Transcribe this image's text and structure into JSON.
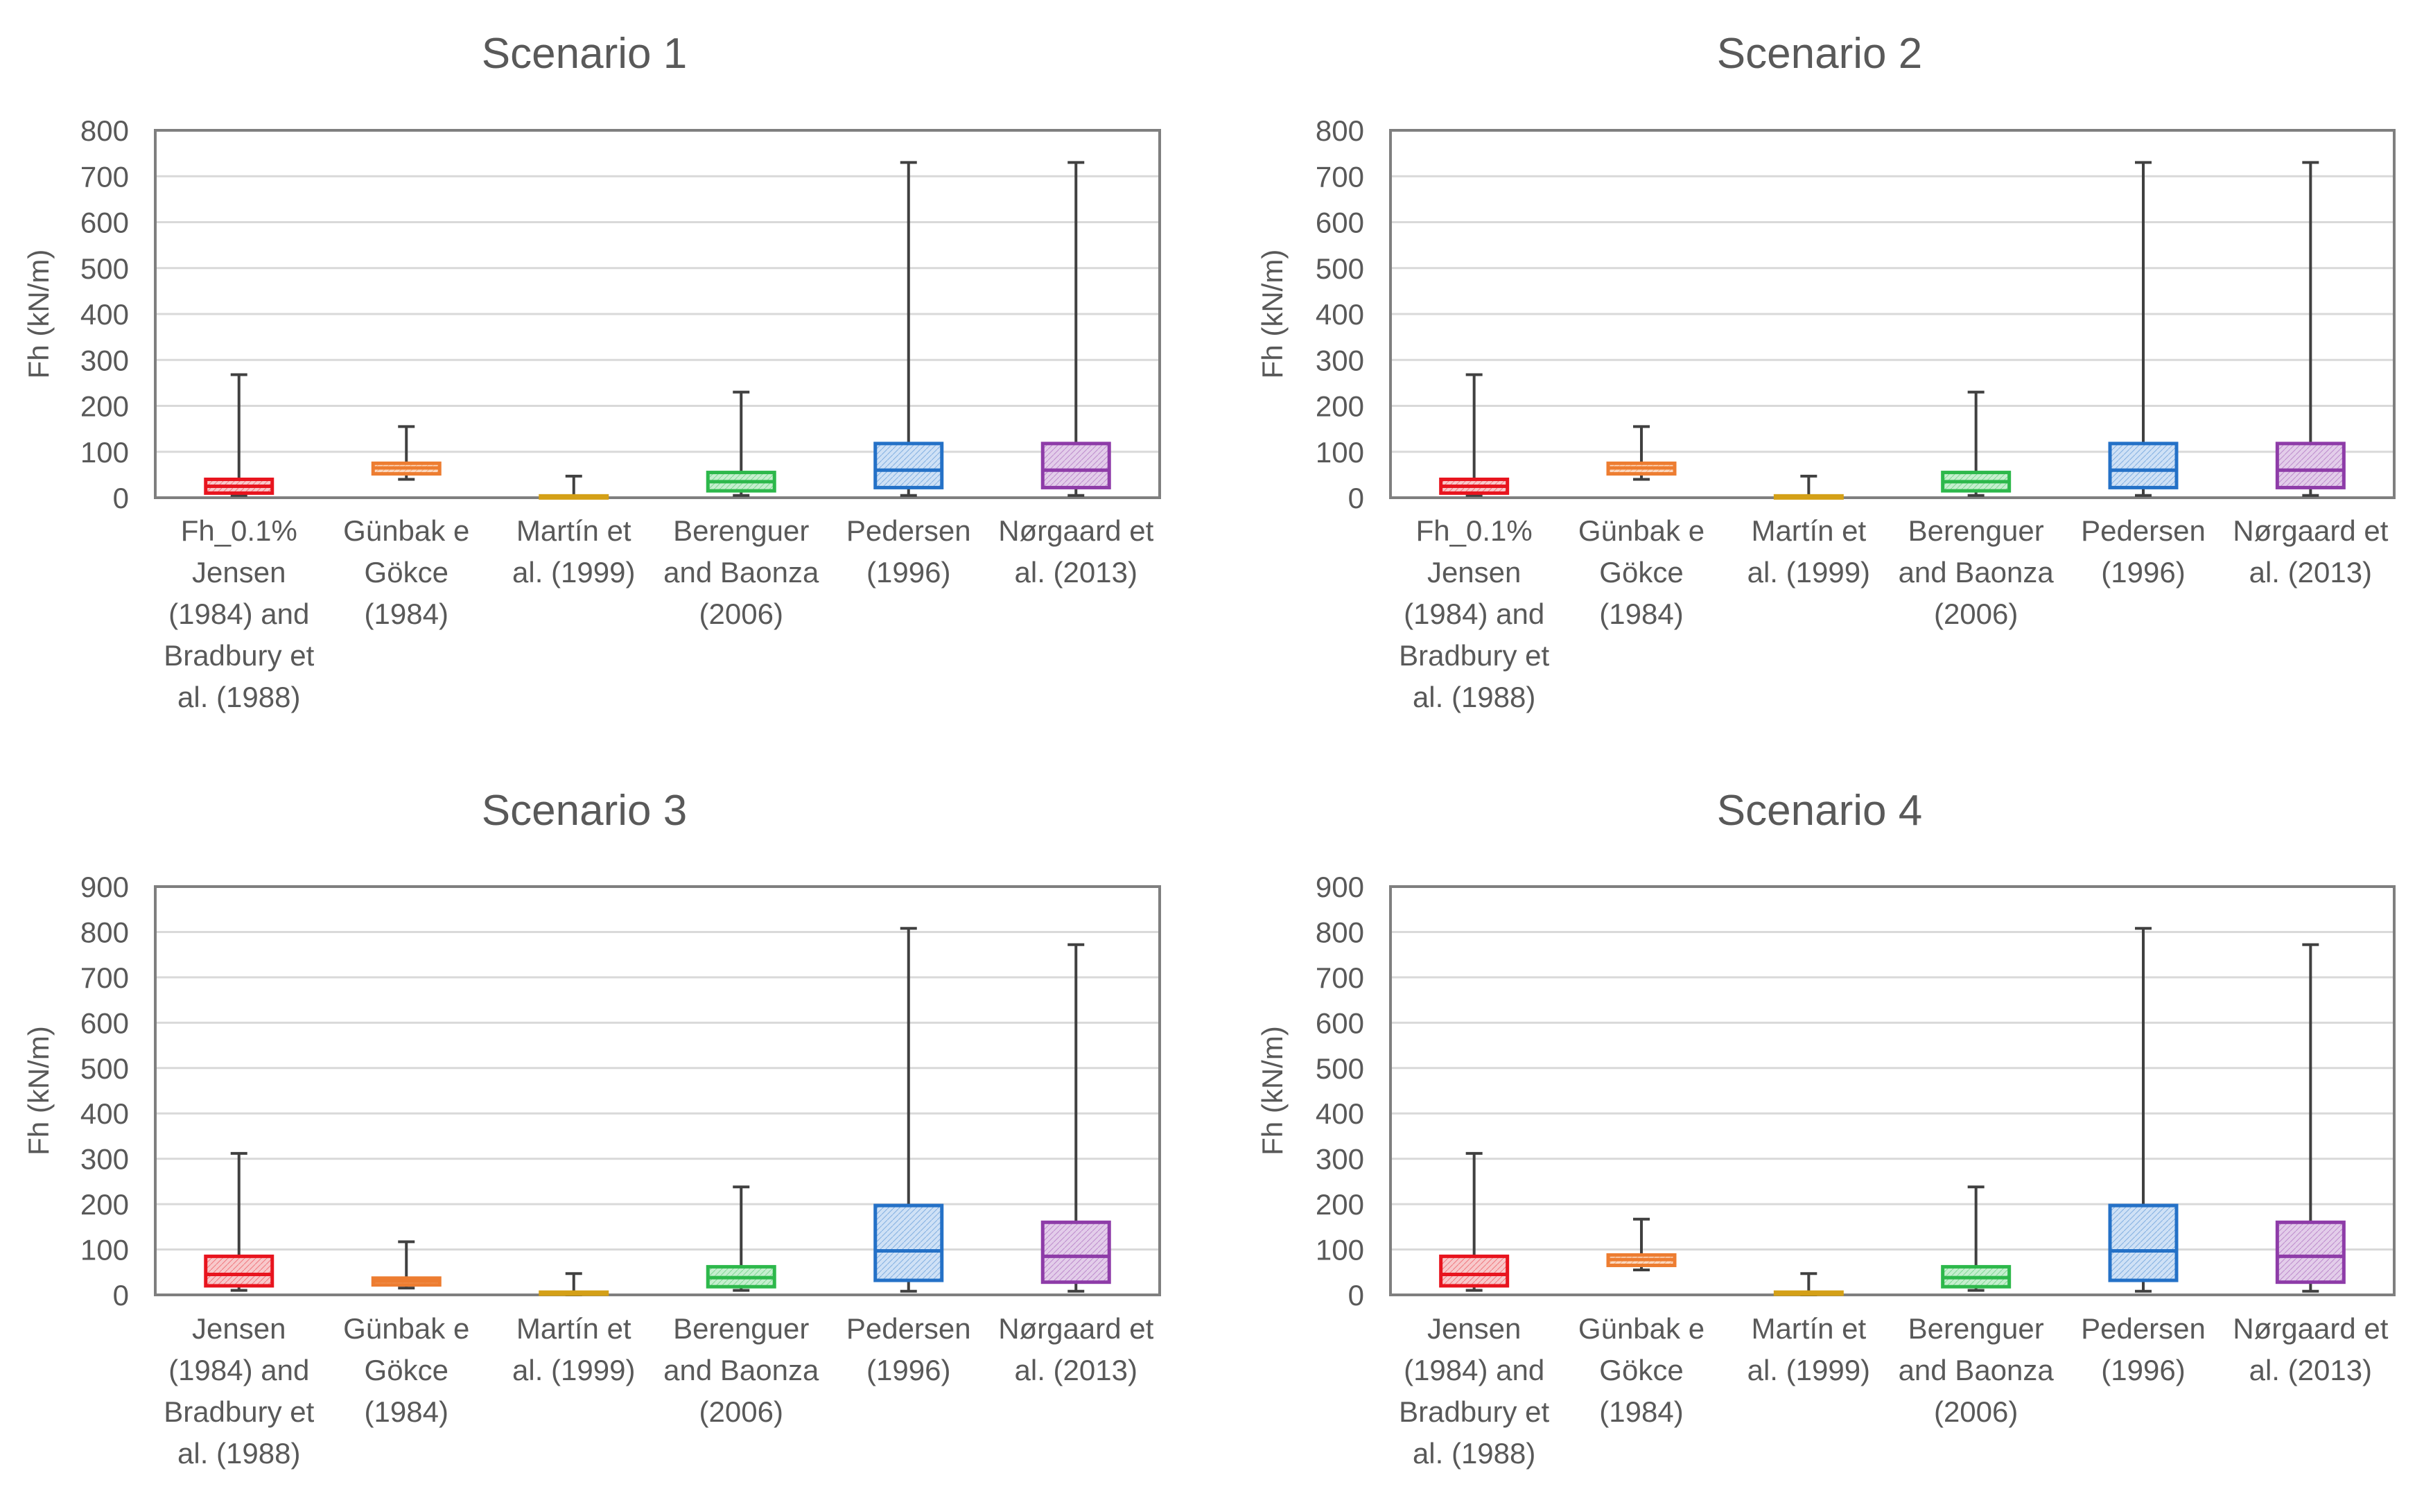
{
  "figure": {
    "ylabel": "Fh (kN/m)"
  },
  "colors": {
    "red": "#E8141E",
    "orange": "#ED7D31",
    "gold": "#D4A017",
    "green": "#2DB84B",
    "blue": "#2471C7",
    "purple": "#8E3CA8",
    "whisker": "#404040",
    "axis": "#7f7f7f",
    "grid": "#d9d9d9",
    "text": "#595959"
  },
  "chart_data": [
    {
      "type": "boxplot",
      "title": "Scenario 1",
      "ylabel": "Fh (kN/m)",
      "ylim": [
        0,
        800
      ],
      "yticks": [
        0,
        100,
        200,
        300,
        400,
        500,
        600,
        700,
        800
      ],
      "grid": true,
      "categories": [
        [
          "Fh_0.1%",
          "Jensen",
          "(1984) and",
          "Bradbury et",
          "al. (1988)"
        ],
        [
          "Günbak e",
          "Gökce",
          "(1984)"
        ],
        [
          "Martín et",
          "al. (1999)"
        ],
        [
          "Berenguer",
          "and Baonza",
          "(2006)"
        ],
        [
          "Pedersen",
          "(1996)"
        ],
        [
          "Nørgaard et",
          "al. (2013)"
        ]
      ],
      "boxes": [
        {
          "min": 5,
          "q1": 10,
          "median": 25,
          "q3": 40,
          "max": 268,
          "color": "red"
        },
        {
          "min": 40,
          "q1": 52,
          "median": 65,
          "q3": 75,
          "max": 155,
          "color": "orange"
        },
        {
          "min": 0,
          "q1": 1,
          "median": 2,
          "q3": 4,
          "max": 47,
          "color": "gold"
        },
        {
          "min": 5,
          "q1": 15,
          "median": 35,
          "q3": 55,
          "max": 230,
          "color": "green"
        },
        {
          "min": 5,
          "q1": 22,
          "median": 60,
          "q3": 118,
          "max": 730,
          "color": "blue"
        },
        {
          "min": 5,
          "q1": 22,
          "median": 60,
          "q3": 118,
          "max": 730,
          "color": "purple"
        }
      ]
    },
    {
      "type": "boxplot",
      "title": "Scenario 2",
      "ylabel": "Fh (kN/m)",
      "ylim": [
        0,
        800
      ],
      "yticks": [
        0,
        100,
        200,
        300,
        400,
        500,
        600,
        700,
        800
      ],
      "grid": true,
      "categories": [
        [
          "Fh_0.1%",
          "Jensen",
          "(1984) and",
          "Bradbury et",
          "al. (1988)"
        ],
        [
          "Günbak e",
          "Gökce",
          "(1984)"
        ],
        [
          "Martín et",
          "al. (1999)"
        ],
        [
          "Berenguer",
          "and Baonza",
          "(2006)"
        ],
        [
          "Pedersen",
          "(1996)"
        ],
        [
          "Nørgaard et",
          "al. (2013)"
        ]
      ],
      "boxes": [
        {
          "min": 5,
          "q1": 10,
          "median": 25,
          "q3": 40,
          "max": 268,
          "color": "red"
        },
        {
          "min": 40,
          "q1": 52,
          "median": 65,
          "q3": 75,
          "max": 155,
          "color": "orange"
        },
        {
          "min": 0,
          "q1": 1,
          "median": 2,
          "q3": 4,
          "max": 47,
          "color": "gold"
        },
        {
          "min": 5,
          "q1": 15,
          "median": 35,
          "q3": 55,
          "max": 230,
          "color": "green"
        },
        {
          "min": 5,
          "q1": 22,
          "median": 60,
          "q3": 118,
          "max": 730,
          "color": "blue"
        },
        {
          "min": 5,
          "q1": 22,
          "median": 60,
          "q3": 118,
          "max": 730,
          "color": "purple"
        }
      ]
    },
    {
      "type": "boxplot",
      "title": "Scenario 3",
      "ylabel": "Fh (kN/m)",
      "ylim": [
        0,
        900
      ],
      "yticks": [
        0,
        100,
        200,
        300,
        400,
        500,
        600,
        700,
        800,
        900
      ],
      "grid": true,
      "categories": [
        [
          "Jensen",
          "(1984) and",
          "Bradbury et",
          "al. (1988)"
        ],
        [
          "Günbak e",
          "Gökce",
          "(1984)"
        ],
        [
          "Martín et",
          "al. (1999)"
        ],
        [
          "Berenguer",
          "and Baonza",
          "(2006)"
        ],
        [
          "Pedersen",
          "(1996)"
        ],
        [
          "Nørgaard et",
          "al. (2013)"
        ]
      ],
      "boxes": [
        {
          "min": 10,
          "q1": 20,
          "median": 45,
          "q3": 85,
          "max": 312,
          "color": "red"
        },
        {
          "min": 15,
          "q1": 22,
          "median": 30,
          "q3": 37,
          "max": 117,
          "color": "orange"
        },
        {
          "min": 0,
          "q1": 2,
          "median": 4,
          "q3": 6,
          "max": 47,
          "color": "gold"
        },
        {
          "min": 10,
          "q1": 18,
          "median": 38,
          "q3": 62,
          "max": 238,
          "color": "green"
        },
        {
          "min": 8,
          "q1": 32,
          "median": 97,
          "q3": 197,
          "max": 808,
          "color": "blue"
        },
        {
          "min": 8,
          "q1": 28,
          "median": 85,
          "q3": 160,
          "max": 772,
          "color": "purple"
        }
      ]
    },
    {
      "type": "boxplot",
      "title": "Scenario 4",
      "ylabel": "Fh (kN/m)",
      "ylim": [
        0,
        900
      ],
      "yticks": [
        0,
        100,
        200,
        300,
        400,
        500,
        600,
        700,
        800,
        900
      ],
      "grid": true,
      "categories": [
        [
          "Jensen",
          "(1984) and",
          "Bradbury et",
          "al. (1988)"
        ],
        [
          "Günbak e",
          "Gökce",
          "(1984)"
        ],
        [
          "Martín et",
          "al. (1999)"
        ],
        [
          "Berenguer",
          "and Baonza",
          "(2006)"
        ],
        [
          "Pedersen",
          "(1996)"
        ],
        [
          "Nørgaard et",
          "al. (2013)"
        ]
      ],
      "boxes": [
        {
          "min": 10,
          "q1": 20,
          "median": 45,
          "q3": 85,
          "max": 312,
          "color": "red"
        },
        {
          "min": 55,
          "q1": 65,
          "median": 78,
          "q3": 88,
          "max": 167,
          "color": "orange"
        },
        {
          "min": 0,
          "q1": 2,
          "median": 4,
          "q3": 6,
          "max": 47,
          "color": "gold"
        },
        {
          "min": 10,
          "q1": 18,
          "median": 38,
          "q3": 62,
          "max": 238,
          "color": "green"
        },
        {
          "min": 8,
          "q1": 32,
          "median": 97,
          "q3": 197,
          "max": 808,
          "color": "blue"
        },
        {
          "min": 8,
          "q1": 28,
          "median": 85,
          "q3": 160,
          "max": 772,
          "color": "purple"
        }
      ]
    }
  ]
}
